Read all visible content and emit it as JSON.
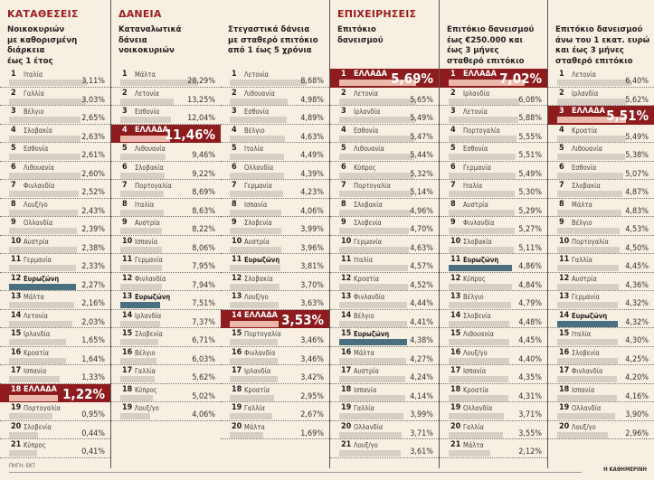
{
  "sections": [
    {
      "title": "ΚΑΤΑΘΕΣΕΙΣ",
      "subtitle": "Νοικοκυριών\nμε καθορισμένη\nδιάρκεια\nέως 1 έτος",
      "rows": [
        {
          "rank": "1",
          "name": "Ιταλία",
          "value": "3,11%"
        },
        {
          "rank": "2",
          "name": "Γαλλία",
          "value": "3,03%"
        },
        {
          "rank": "3",
          "name": "Βέλγιο",
          "value": "2,65%"
        },
        {
          "rank": "4",
          "name": "Σλοβακία",
          "value": "2,63%"
        },
        {
          "rank": "5",
          "name": "Εσθονία",
          "value": "2,61%"
        },
        {
          "rank": "6",
          "name": "Λιθουανία",
          "value": "2,60%"
        },
        {
          "rank": "7",
          "name": "Φινλανδία",
          "value": "2,52%"
        },
        {
          "rank": "8",
          "name": "Λουξ/γο",
          "value": "2,43%"
        },
        {
          "rank": "9",
          "name": "Ολλανδία",
          "value": "2,39%"
        },
        {
          "rank": "10",
          "name": "Αυστρία",
          "value": "2,38%"
        },
        {
          "rank": "11",
          "name": "Γερμανία",
          "value": "2,33%"
        },
        {
          "rank": "12",
          "name": "Ευρωζώνη",
          "value": "2,27%",
          "type": "ez"
        },
        {
          "rank": "13",
          "name": "Μάλτα",
          "value": "2,16%"
        },
        {
          "rank": "14",
          "name": "Λετονία",
          "value": "2,03%"
        },
        {
          "rank": "15",
          "name": "Ιρλανδία",
          "value": "1,65%"
        },
        {
          "rank": "16",
          "name": "Κροατία",
          "value": "1,64%"
        },
        {
          "rank": "17",
          "name": "Ισπανία",
          "value": "1,33%"
        },
        {
          "rank": "18",
          "name": "ΕΛΛΑΔΑ",
          "value": "1,22%",
          "type": "gr"
        },
        {
          "rank": "19",
          "name": "Πορτογαλία",
          "value": "0,95%"
        },
        {
          "rank": "20",
          "name": "Σλοβενία",
          "value": "0,44%"
        },
        {
          "rank": "21",
          "name": "Κύπρος",
          "value": "0,41%"
        }
      ]
    },
    {
      "title": "ΔΑΝΕΙΑ",
      "subtitle": "Καταναλωτικά\nδάνεια\nνοικοκυριών",
      "rows": [
        {
          "rank": "1",
          "name": "Μάλτα",
          "value": "28,29%"
        },
        {
          "rank": "2",
          "name": "Λετονία",
          "value": "13,25%"
        },
        {
          "rank": "3",
          "name": "Εσθονία",
          "value": "12,04%"
        },
        {
          "rank": "4",
          "name": "ΕΛΛΑΔΑ",
          "value": "11,46%",
          "type": "gr"
        },
        {
          "rank": "5",
          "name": "Λιθουανία",
          "value": "9,46%"
        },
        {
          "rank": "6",
          "name": "Σλοβακία",
          "value": "9,22%"
        },
        {
          "rank": "7",
          "name": "Πορτογαλία",
          "value": "8,69%"
        },
        {
          "rank": "8",
          "name": "Ιταλία",
          "value": "8,63%"
        },
        {
          "rank": "9",
          "name": "Αυστρία",
          "value": "8,22%"
        },
        {
          "rank": "10",
          "name": "Ισπανία",
          "value": "8,06%"
        },
        {
          "rank": "11",
          "name": "Γερμανία",
          "value": "7,95%"
        },
        {
          "rank": "12",
          "name": "Φινλανδία",
          "value": "7,94%"
        },
        {
          "rank": "13",
          "name": "Ευρωζώνη",
          "value": "7,51%",
          "type": "ez"
        },
        {
          "rank": "14",
          "name": "Ιρλανδία",
          "value": "7,37%"
        },
        {
          "rank": "15",
          "name": "Σλοβενία",
          "value": "6,71%"
        },
        {
          "rank": "16",
          "name": "Βέλγιο",
          "value": "6,03%"
        },
        {
          "rank": "17",
          "name": "Γαλλία",
          "value": "5,62%"
        },
        {
          "rank": "18",
          "name": "Κύπρος",
          "value": "5,02%"
        },
        {
          "rank": "19",
          "name": "Λουξ/γο",
          "value": "4,06%"
        }
      ]
    },
    {
      "title": "",
      "subtitle": "Στεγαστικά δάνεια\nμε σταθερό επιτόκιο\nαπό 1 έως 5 χρόνια",
      "rows": [
        {
          "rank": "1",
          "name": "Λετονία",
          "value": "8,68%"
        },
        {
          "rank": "2",
          "name": "Λιθουανία",
          "value": "4,98%"
        },
        {
          "rank": "3",
          "name": "Εσθονία",
          "value": "4,89%"
        },
        {
          "rank": "4",
          "name": "Βέλγιο",
          "value": "4,63%"
        },
        {
          "rank": "5",
          "name": "Ιταλία",
          "value": "4,49%"
        },
        {
          "rank": "6",
          "name": "Ολλανδία",
          "value": "4,39%"
        },
        {
          "rank": "7",
          "name": "Γερμανία",
          "value": "4,23%"
        },
        {
          "rank": "8",
          "name": "Ισπανία",
          "value": "4,06%"
        },
        {
          "rank": "9",
          "name": "Σλοβενία",
          "value": "3,99%"
        },
        {
          "rank": "10",
          "name": "Αυστρία",
          "value": "3,96%"
        },
        {
          "rank": "11",
          "name": "Ευρωζώνη",
          "value": "3,81%",
          "type": "ezg"
        },
        {
          "rank": "12",
          "name": "Σλοβακία",
          "value": "3,70%"
        },
        {
          "rank": "13",
          "name": "Λουξ/γο",
          "value": "3,63%"
        },
        {
          "rank": "14",
          "name": "ΕΛΛΑΔΑ",
          "value": "3,53%",
          "type": "gr"
        },
        {
          "rank": "15",
          "name": "Πορτογαλία",
          "value": "3,46%"
        },
        {
          "rank": "16",
          "name": "Φινλανδία",
          "value": "3,46%"
        },
        {
          "rank": "17",
          "name": "Ιρλανδία",
          "value": "3,42%"
        },
        {
          "rank": "18",
          "name": "Κροατία",
          "value": "2,95%"
        },
        {
          "rank": "19",
          "name": "Γαλλία",
          "value": "2,67%"
        },
        {
          "rank": "20",
          "name": "Μάλτα",
          "value": "1,69%"
        }
      ]
    },
    {
      "title": "ΕΠΙΧΕΙΡΗΣΕΙΣ",
      "subtitle": "Επιτόκιο\nδανεισμού",
      "rows": [
        {
          "rank": "1",
          "name": "ΕΛΛΑΔΑ",
          "value": "5,69%",
          "type": "gr"
        },
        {
          "rank": "2",
          "name": "Λετονία",
          "value": "5,65%"
        },
        {
          "rank": "3",
          "name": "Ιρλανδία",
          "value": "5,49%"
        },
        {
          "rank": "4",
          "name": "Εσθονία",
          "value": "5,47%"
        },
        {
          "rank": "5",
          "name": "Λιθουανία",
          "value": "5,44%"
        },
        {
          "rank": "6",
          "name": "Κύπρος",
          "value": "5,32%"
        },
        {
          "rank": "7",
          "name": "Πορτογαλία",
          "value": "5,14%"
        },
        {
          "rank": "8",
          "name": "Σλοβακία",
          "value": "4,96%"
        },
        {
          "rank": "9",
          "name": "Σλοβενία",
          "value": "4,70%"
        },
        {
          "rank": "10",
          "name": "Γερμανία",
          "value": "4,63%"
        },
        {
          "rank": "11",
          "name": "Ιταλία",
          "value": "4,57%"
        },
        {
          "rank": "12",
          "name": "Κροατία",
          "value": "4,52%"
        },
        {
          "rank": "13",
          "name": "Φινλανδία",
          "value": "4,44%"
        },
        {
          "rank": "14",
          "name": "Βέλγιο",
          "value": "4,41%"
        },
        {
          "rank": "15",
          "name": "Ευρωζώνη",
          "value": "4,38%",
          "type": "ez"
        },
        {
          "rank": "16",
          "name": "Μάλτα",
          "value": "4,27%"
        },
        {
          "rank": "17",
          "name": "Αυστρία",
          "value": "4,24%"
        },
        {
          "rank": "18",
          "name": "Ισπανία",
          "value": "4,14%"
        },
        {
          "rank": "19",
          "name": "Γαλλία",
          "value": "3,99%"
        },
        {
          "rank": "20",
          "name": "Ολλανδία",
          "value": "3,71%"
        },
        {
          "rank": "21",
          "name": "Λουξ/γο",
          "value": "3,61%"
        }
      ]
    },
    {
      "title": "",
      "subtitle": "Επιτόκιο δανεισμού\nέως €250.000 και\nέως 3 μήνες\nσταθερό επιτόκιο",
      "rows": [
        {
          "rank": "1",
          "name": "ΕΛΛΑΔΑ",
          "value": "7,02%",
          "type": "gr"
        },
        {
          "rank": "2",
          "name": "Ιρλανδία",
          "value": "6,08%"
        },
        {
          "rank": "3",
          "name": "Λετονία",
          "value": "5,88%"
        },
        {
          "rank": "4",
          "name": "Πορτογαλία",
          "value": "5,55%"
        },
        {
          "rank": "5",
          "name": "Εσθονία",
          "value": "5,51%"
        },
        {
          "rank": "6",
          "name": "Γερμανία",
          "value": "5,49%"
        },
        {
          "rank": "7",
          "name": "Ιταλία",
          "value": "5,30%"
        },
        {
          "rank": "8",
          "name": "Αυστρία",
          "value": "5,29%"
        },
        {
          "rank": "9",
          "name": "Φινλανδία",
          "value": "5,27%"
        },
        {
          "rank": "10",
          "name": "Σλοβακία",
          "value": "5,11%"
        },
        {
          "rank": "11",
          "name": "Ευρωζώνη",
          "value": "4,86%",
          "type": "ez"
        },
        {
          "rank": "12",
          "name": "Κύπρος",
          "value": "4,84%"
        },
        {
          "rank": "13",
          "name": "Βέλγιο",
          "value": "4,79%"
        },
        {
          "rank": "14",
          "name": "Σλοβενία",
          "value": "4,48%"
        },
        {
          "rank": "15",
          "name": "Λιθουανία",
          "value": "4,45%"
        },
        {
          "rank": "16",
          "name": "Λουξ/γο",
          "value": "4,40%"
        },
        {
          "rank": "17",
          "name": "Ισπανία",
          "value": "4,35%"
        },
        {
          "rank": "18",
          "name": "Κροατία",
          "value": "4,31%"
        },
        {
          "rank": "19",
          "name": "Ολλανδία",
          "value": "3,71%"
        },
        {
          "rank": "20",
          "name": "Γαλλία",
          "value": "3,55%"
        },
        {
          "rank": "21",
          "name": "Μάλτα",
          "value": "2,12%"
        }
      ]
    },
    {
      "title": "",
      "subtitle": "Επιτόκιο δανεισμού\nάνω του 1 εκατ. ευρώ\nκαι έως 3 μήνες\nσταθερό επιτόκιο",
      "rows": [
        {
          "rank": "1",
          "name": "Λετονία",
          "value": "6,40%"
        },
        {
          "rank": "2",
          "name": "Ιρλανδία",
          "value": "5,62%"
        },
        {
          "rank": "3",
          "name": "ΕΛΛΑΔΑ",
          "value": "5,51%",
          "type": "gr"
        },
        {
          "rank": "4",
          "name": "Κροατία",
          "value": "5,49%"
        },
        {
          "rank": "5",
          "name": "Λιθουανία",
          "value": "5,38%"
        },
        {
          "rank": "6",
          "name": "Εσθονία",
          "value": "5,07%"
        },
        {
          "rank": "7",
          "name": "Σλοβακία",
          "value": "4,87%"
        },
        {
          "rank": "8",
          "name": "Μάλτα",
          "value": "4,83%"
        },
        {
          "rank": "9",
          "name": "Βέλγιο",
          "value": "4,53%"
        },
        {
          "rank": "10",
          "name": "Πορτογαλία",
          "value": "4,50%"
        },
        {
          "rank": "11",
          "name": "Γαλλία",
          "value": "4,45%"
        },
        {
          "rank": "12",
          "name": "Αυστρία",
          "value": "4,36%"
        },
        {
          "rank": "13",
          "name": "Γερμανία",
          "value": "4,32%"
        },
        {
          "rank": "14",
          "name": "Ευρωζώνη",
          "value": "4,32%",
          "type": "ez"
        },
        {
          "rank": "15",
          "name": "Ιταλία",
          "value": "4,30%"
        },
        {
          "rank": "16",
          "name": "Σλοβενία",
          "value": "4,25%"
        },
        {
          "rank": "17",
          "name": "Φινλανδία",
          "value": "4,20%"
        },
        {
          "rank": "18",
          "name": "Ισπανία",
          "value": "4,16%"
        },
        {
          "rank": "19",
          "name": "Ολλανδία",
          "value": "3,90%"
        },
        {
          "rank": "20",
          "name": "Λουξ/γο",
          "value": "2,96%"
        }
      ]
    }
  ],
  "footer": {
    "source": "ΠΗΓΗ: ΕΚΤ",
    "credit": "Η ΚΑΘΗΜΕΡΙΝΗ"
  },
  "colors": {
    "greece": "#8e1c1f",
    "eurozone": "#4a6f80",
    "bar": "#d6cfc6",
    "title": "#9b1c1f"
  },
  "chart_data": {
    "type": "bar",
    "orientation": "horizontal",
    "note": "six ranked bar lists; values in sections[].rows"
  }
}
